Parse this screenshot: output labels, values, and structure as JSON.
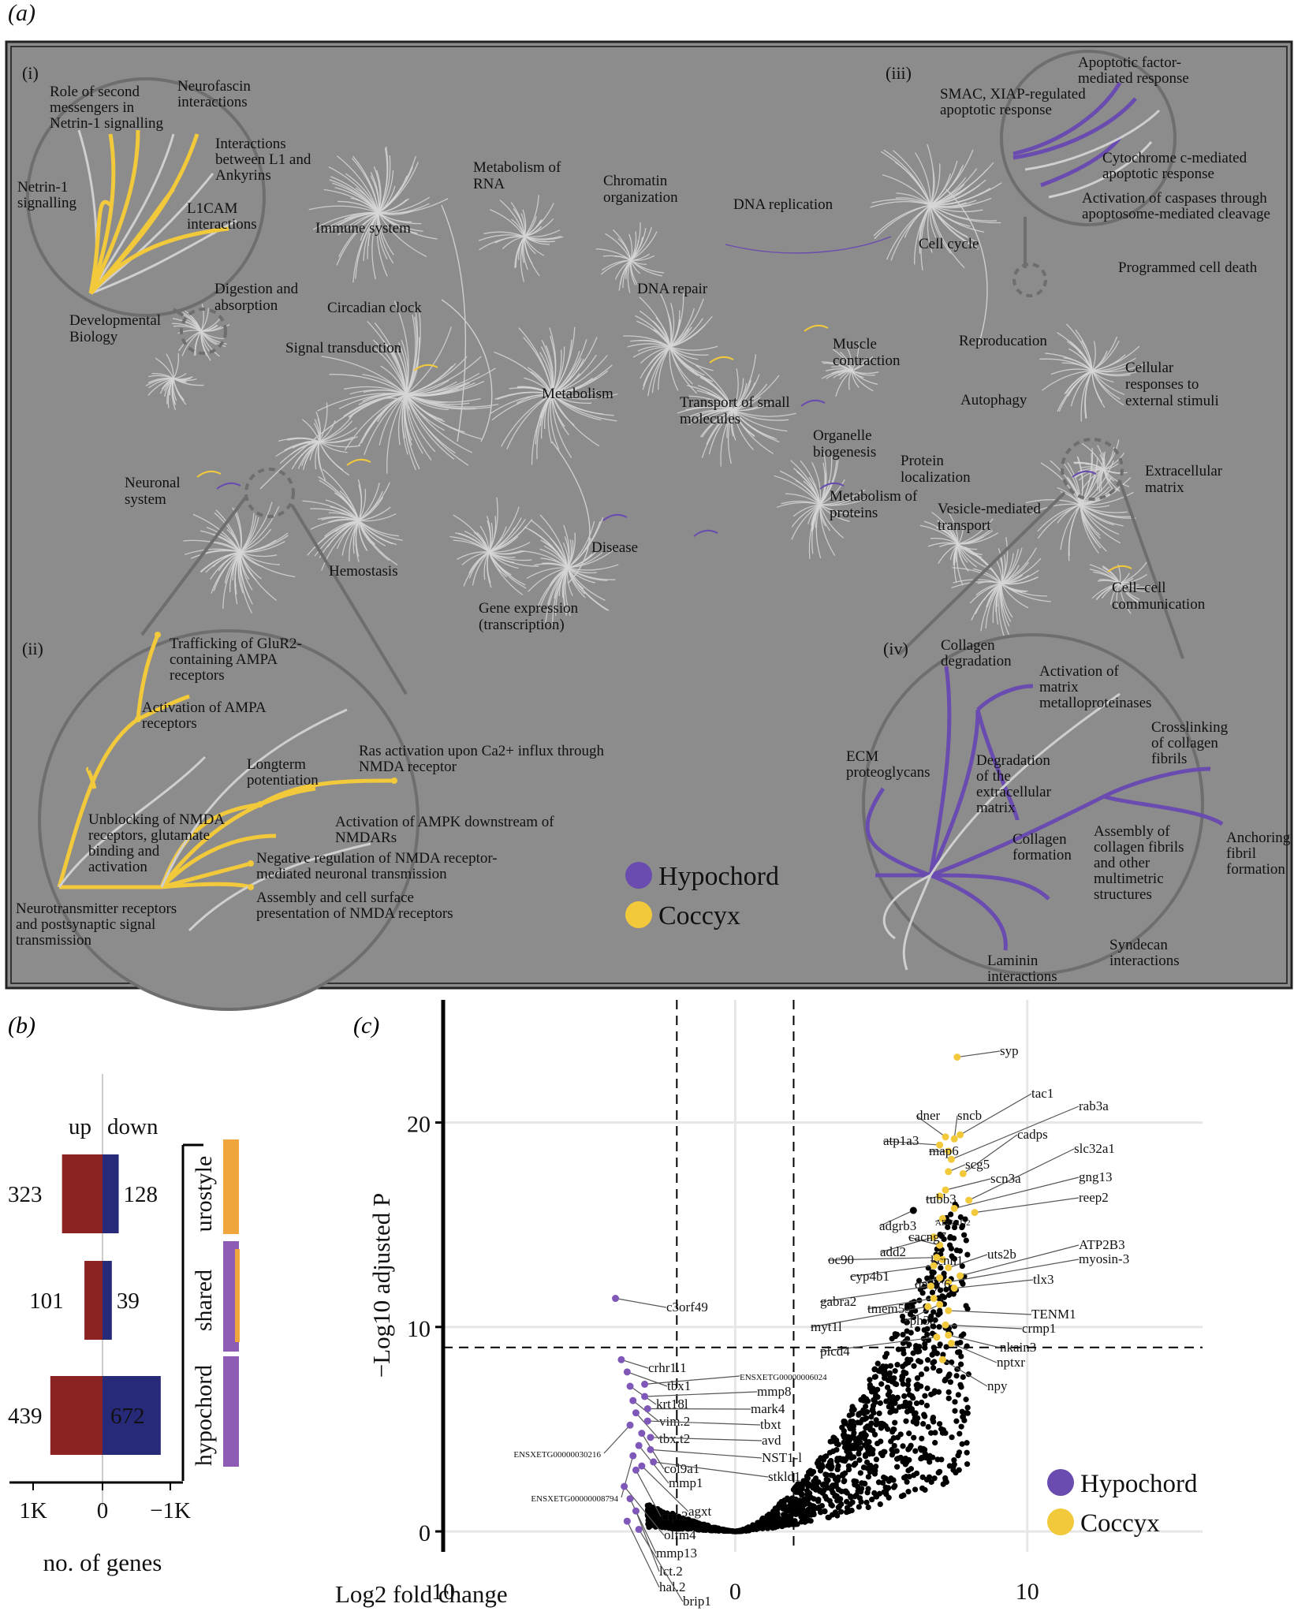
{
  "panel_a": {
    "letter": "(a)",
    "sub_labels": [
      "(i)",
      "(ii)",
      "(iii)",
      "(iv)"
    ],
    "clusters": [
      {
        "label": "Immune system"
      },
      {
        "label": "Metabolism of RNA"
      },
      {
        "label": "Chromatin organization"
      },
      {
        "label": "DNA replication"
      },
      {
        "label": "Cell cycle"
      },
      {
        "label": "Programmed cell death"
      },
      {
        "label": "Digestion and absorption"
      },
      {
        "label": "Circadian clock"
      },
      {
        "label": "DNA repair"
      },
      {
        "label": "Developmental Biology"
      },
      {
        "label": "Signal transduction"
      },
      {
        "label": "Muscle contraction"
      },
      {
        "label": "Reproducation"
      },
      {
        "label": "Metabolism"
      },
      {
        "label": "Transport of small molecules"
      },
      {
        "label": "Autophagy"
      },
      {
        "label": "Cellular responses to external stimuli"
      },
      {
        "label": "Organelle biogenesis"
      },
      {
        "label": "Protein localization"
      },
      {
        "label": "Neuronal system"
      },
      {
        "label": "Extracellular matrix"
      },
      {
        "label": "Metabolism of proteins"
      },
      {
        "label": "Vesicle-mediated transport"
      },
      {
        "label": "Disease"
      },
      {
        "label": "Hemostasis"
      },
      {
        "label": "Gene expression (transcription)"
      },
      {
        "label": "Cell–cell communication"
      }
    ],
    "inset_i": [
      "Role of second messengers in Netrin-1 signalling",
      "Neurofascin interactions",
      "Interactions between L1 and Ankyrins",
      "Netrin-1 signalling",
      "L1CAM interactions"
    ],
    "inset_ii": [
      "Trafficking of GluR2-containing AMPA receptors",
      "Activation of AMPA receptors",
      "Ras activation upon Ca2+ influx through NMDA receptor",
      "Longterm potentiation",
      "Unblocking of NMDA receptors, glutamate binding and activation",
      "Activation of AMPK downstream of NMDARs",
      "Negative regulation of NMDA receptor-mediated neuronal transmission",
      "Neurotransmitter receptors and postsynaptic signal transmission",
      "Assembly and cell surface presentation of NMDA receptors"
    ],
    "inset_iii": [
      "Apoptotic factor-mediated response",
      "SMAC, XIAP-regulated apoptotic response",
      "Cytochrome c-mediated apoptotic response",
      "Activation of caspases through apoptosome-mediated cleavage"
    ],
    "inset_iv": [
      "Collagen degradation",
      "Activation of matrix metalloproteinases",
      "Crosslinking of collagen fibrils",
      "ECM proteoglycans",
      "Degradation of the extracellular matrix",
      "Collagen formation",
      "Assembly of collagen fibrils and other multimetric structures",
      "Anchoring fibril formation",
      "Syndecan interactions",
      "Laminin interactions"
    ],
    "legend": [
      {
        "name": "Hypochord",
        "color": "#6a4bb0"
      },
      {
        "name": "Coccyx",
        "color": "#f2c93b"
      }
    ]
  },
  "panel_b": {
    "letter": "(b)",
    "header_up": "up",
    "header_down": "down",
    "xlabel": "no. of genes",
    "xticks": [
      "1K",
      "0",
      "−1K"
    ],
    "colors": {
      "up": "#8b2323",
      "down": "#272a78"
    },
    "groups": [
      {
        "name": "urostyle",
        "up": 323,
        "down": 128,
        "bar_color": "#f0a63c"
      },
      {
        "name": "shared",
        "up": 101,
        "down": 39,
        "bar_color": "#8e5bb5"
      },
      {
        "name": "hypochord",
        "up": 439,
        "down": 672,
        "bar_color": "#8e5bb5"
      }
    ]
  },
  "chart_data": {
    "type": "scatter",
    "letter": "(c)",
    "xlabel": "Log2 fold change",
    "ylabel": "−Log10 adjusted P",
    "xlim": [
      -10,
      16
    ],
    "ylim": [
      -1,
      26
    ],
    "xticks": [
      "10",
      "0",
      "10"
    ],
    "yticks": [
      "0",
      "10",
      "20"
    ],
    "thresholds": {
      "x": [
        -2,
        2
      ],
      "y": 9
    },
    "legend": [
      {
        "name": "Hypochord",
        "color": "#6a4bb0"
      },
      {
        "name": "Coccyx",
        "color": "#f2c93b"
      }
    ],
    "labeled_genes": [
      {
        "name": "syp",
        "x": 7.6,
        "y": 23.2,
        "group": "coccyx"
      },
      {
        "name": "tac1",
        "x": 7.7,
        "y": 19.4,
        "group": "coccyx"
      },
      {
        "name": "rab3a",
        "x": 7.4,
        "y": 18.2,
        "group": "coccyx"
      },
      {
        "name": "dner",
        "x": 7.2,
        "y": 19.3,
        "group": "coccyx"
      },
      {
        "name": "sncb",
        "x": 7.5,
        "y": 19.2,
        "group": "coccyx"
      },
      {
        "name": "cadps",
        "x": 7.8,
        "y": 17.5,
        "group": "coccyx"
      },
      {
        "name": "slc32a1",
        "x": 8.0,
        "y": 16.2,
        "group": "coccyx"
      },
      {
        "name": "atp1a3",
        "x": 7.0,
        "y": 18.9,
        "group": "coccyx"
      },
      {
        "name": "map6",
        "x": 7.3,
        "y": 18.6,
        "group": "coccyx"
      },
      {
        "name": "scg5",
        "x": 7.3,
        "y": 17.6,
        "group": "coccyx"
      },
      {
        "name": "scn3a",
        "x": 7.2,
        "y": 16.7,
        "group": "coccyx"
      },
      {
        "name": "gng13",
        "x": 7.5,
        "y": 15.8,
        "group": "coccyx"
      },
      {
        "name": "reep2",
        "x": 8.2,
        "y": 15.6,
        "group": "coccyx"
      },
      {
        "name": "tubb3",
        "x": 7.0,
        "y": 16.4,
        "group": "coccyx"
      },
      {
        "name": "adgrb3",
        "x": 6.1,
        "y": 15.7,
        "group": "black"
      },
      {
        "name": "ADGRD2",
        "x": 7.1,
        "y": 15.3,
        "group": "coccyx"
      },
      {
        "name": "add2",
        "x": 6.8,
        "y": 14.4,
        "group": "coccyx"
      },
      {
        "name": "cacng7",
        "x": 7.0,
        "y": 14.0,
        "group": "coccyx"
      },
      {
        "name": "kcnn1",
        "x": 7.1,
        "y": 13.3,
        "group": "coccyx"
      },
      {
        "name": "uts2b",
        "x": 7.3,
        "y": 12.9,
        "group": "coccyx"
      },
      {
        "name": "ATP2B3",
        "x": 7.7,
        "y": 12.5,
        "group": "coccyx"
      },
      {
        "name": "myosin-3",
        "x": 7.3,
        "y": 12.2,
        "group": "coccyx"
      },
      {
        "name": "oc90",
        "x": 6.9,
        "y": 13.4,
        "group": "coccyx"
      },
      {
        "name": "cyp4b1",
        "x": 6.8,
        "y": 13.0,
        "group": "coccyx"
      },
      {
        "name": "dnajc6",
        "x": 7.0,
        "y": 12.4,
        "group": "coccyx"
      },
      {
        "name": "tlx3",
        "x": 7.5,
        "y": 11.9,
        "group": "coccyx"
      },
      {
        "name": "gabra2",
        "x": 6.7,
        "y": 12.0,
        "group": "coccyx"
      },
      {
        "name": "tmem59",
        "x": 6.8,
        "y": 11.4,
        "group": "coccyx"
      },
      {
        "name": "rph3a",
        "x": 7.0,
        "y": 11.1,
        "group": "coccyx"
      },
      {
        "name": "TENM1",
        "x": 7.3,
        "y": 10.8,
        "group": "coccyx"
      },
      {
        "name": "myt1l",
        "x": 6.6,
        "y": 11.0,
        "group": "coccyx"
      },
      {
        "name": "crmp1",
        "x": 7.2,
        "y": 10.1,
        "group": "coccyx"
      },
      {
        "name": "plcd4",
        "x": 6.9,
        "y": 9.5,
        "group": "coccyx"
      },
      {
        "name": "nkain3",
        "x": 7.3,
        "y": 9.6,
        "group": "coccyx"
      },
      {
        "name": "nptxr",
        "x": 7.4,
        "y": 9.2,
        "group": "coccyx"
      },
      {
        "name": "npy",
        "x": 7.1,
        "y": 8.4,
        "group": "coccyx"
      },
      {
        "name": "c3orf49",
        "x": -4.1,
        "y": 11.4,
        "group": "hypochord"
      },
      {
        "name": "crhr1.1",
        "x": -3.9,
        "y": 8.4,
        "group": "hypochord"
      },
      {
        "name": "tbx1",
        "x": -3.7,
        "y": 7.8,
        "group": "hypochord"
      },
      {
        "name": "krt18l",
        "x": -3.6,
        "y": 7.1,
        "group": "hypochord"
      },
      {
        "name": "vim.2",
        "x": -3.5,
        "y": 6.4,
        "group": "hypochord"
      },
      {
        "name": "tbx.t2",
        "x": -3.4,
        "y": 5.8,
        "group": "hypochord"
      },
      {
        "name": "ENSXETG00000030216",
        "x": -3.6,
        "y": 5.2,
        "group": "hypochord"
      },
      {
        "name": "col9a1",
        "x": -3.2,
        "y": 4.8,
        "group": "hypochord"
      },
      {
        "name": "mmp1",
        "x": -3.3,
        "y": 4.2,
        "group": "hypochord"
      },
      {
        "name": "ENSXETG00000008794",
        "x": -3.5,
        "y": 3.7,
        "group": "hypochord"
      },
      {
        "name": "crp.2",
        "x": -3.4,
        "y": 3.0,
        "group": "hypochord"
      },
      {
        "name": "agxt",
        "x": -3.2,
        "y": 3.2,
        "group": "hypochord"
      },
      {
        "name": "olfm4",
        "x": -3.8,
        "y": 2.2,
        "group": "hypochord"
      },
      {
        "name": "mmp13",
        "x": -3.6,
        "y": 1.6,
        "group": "hypochord"
      },
      {
        "name": "lct.2",
        "x": -3.4,
        "y": 1.0,
        "group": "hypochord"
      },
      {
        "name": "hal.2",
        "x": -3.7,
        "y": 0.5,
        "group": "hypochord"
      },
      {
        "name": "brip1",
        "x": -3.3,
        "y": 0.1,
        "group": "hypochord"
      },
      {
        "name": "ENSXETG00000006024",
        "x": -3.1,
        "y": 7.2,
        "group": "hypochord"
      },
      {
        "name": "mmp8",
        "x": -3.1,
        "y": 6.6,
        "group": "hypochord"
      },
      {
        "name": "mark4",
        "x": -3.0,
        "y": 6.0,
        "group": "hypochord"
      },
      {
        "name": "tbxt",
        "x": -3.0,
        "y": 5.4,
        "group": "hypochord"
      },
      {
        "name": "avd",
        "x": -2.9,
        "y": 4.6,
        "group": "hypochord"
      },
      {
        "name": "NST1-l",
        "x": -2.9,
        "y": 4.0,
        "group": "hypochord"
      },
      {
        "name": "stkld1",
        "x": -2.8,
        "y": 3.4,
        "group": "hypochord"
      }
    ]
  }
}
